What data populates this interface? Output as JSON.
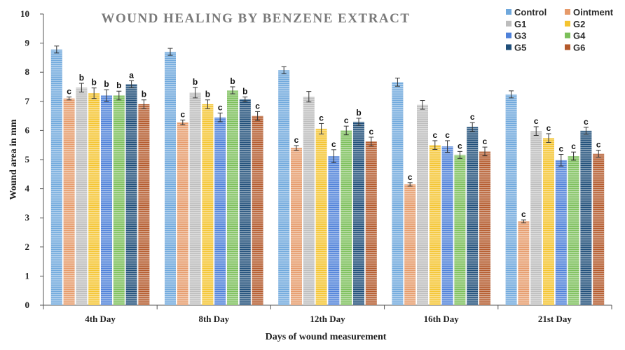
{
  "chart_data": {
    "type": "bar",
    "title": "WOUND HEALING  BY BENZENE EXTRACT",
    "xlabel": "Days of wound measurement",
    "ylabel": "Wound area in mm",
    "ylim": [
      0,
      10
    ],
    "yticks": [
      "0",
      "1",
      "2",
      "3",
      "4",
      "5",
      "6",
      "7",
      "8",
      "9",
      "10"
    ],
    "categories": [
      "4th Day",
      "8th Day",
      "12th Day",
      "16th Day",
      "21st Day"
    ],
    "legend_position": "top-right",
    "series": [
      {
        "name": "Control",
        "color": "#6fa8dc",
        "values": [
          8.78,
          8.7,
          8.07,
          7.66,
          7.24
        ],
        "errors": [
          0.12,
          0.12,
          0.12,
          0.14,
          0.12
        ],
        "labels": [
          "",
          "",
          "",
          "",
          ""
        ]
      },
      {
        "name": "Ointment",
        "color": "#e69a6a",
        "values": [
          7.1,
          6.28,
          5.4,
          4.15,
          2.88
        ],
        "errors": [
          0.05,
          0.08,
          0.08,
          0.06,
          0.05
        ],
        "labels": [
          "c",
          "c",
          "c",
          "c",
          "c"
        ]
      },
      {
        "name": "G1",
        "color": "#bdbdbd",
        "values": [
          7.47,
          7.3,
          7.16,
          6.88,
          5.98
        ],
        "errors": [
          0.15,
          0.18,
          0.18,
          0.15,
          0.15
        ],
        "labels": [
          "b",
          "b",
          "",
          "",
          "c"
        ]
      },
      {
        "name": "G2",
        "color": "#f4c430",
        "values": [
          7.28,
          6.9,
          6.06,
          5.5,
          5.74
        ],
        "errors": [
          0.18,
          0.15,
          0.18,
          0.15,
          0.15
        ],
        "labels": [
          "b",
          "b",
          "c",
          "c",
          "c"
        ]
      },
      {
        "name": "G3",
        "color": "#4f81d9",
        "values": [
          7.2,
          6.45,
          5.12,
          5.45,
          4.98
        ],
        "errors": [
          0.2,
          0.15,
          0.22,
          0.2,
          0.2
        ],
        "labels": [
          "b",
          "c",
          "c",
          "c",
          "c"
        ]
      },
      {
        "name": "G4",
        "color": "#7bbf5a",
        "values": [
          7.2,
          7.38,
          6.0,
          5.16,
          5.12
        ],
        "errors": [
          0.15,
          0.12,
          0.15,
          0.12,
          0.14
        ],
        "labels": [
          "b",
          "b",
          "c",
          "c",
          "c"
        ]
      },
      {
        "name": "G5",
        "color": "#1f4e79",
        "values": [
          7.59,
          7.07,
          6.3,
          6.12,
          5.99
        ],
        "errors": [
          0.12,
          0.08,
          0.12,
          0.15,
          0.12
        ],
        "labels": [
          "a",
          "b",
          "b",
          "c",
          "c"
        ]
      },
      {
        "name": "G6",
        "color": "#b3592b",
        "values": [
          6.9,
          6.5,
          5.62,
          5.28,
          5.2
        ],
        "errors": [
          0.15,
          0.15,
          0.15,
          0.15,
          0.12
        ],
        "labels": [
          "b",
          "c",
          "c",
          "c",
          "c"
        ]
      }
    ]
  }
}
